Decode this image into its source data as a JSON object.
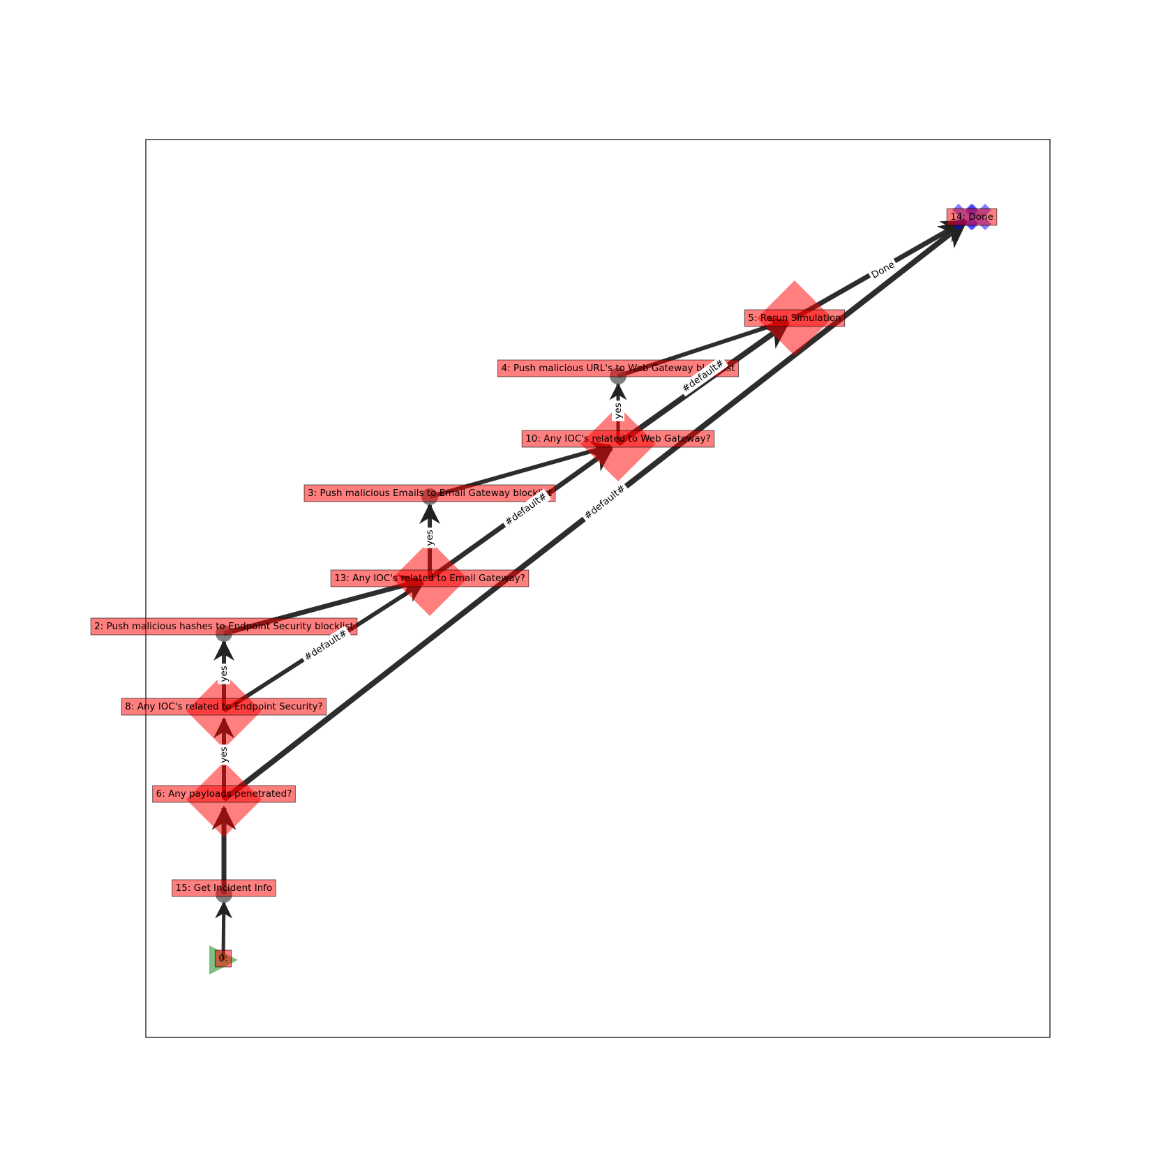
{
  "colors": {
    "edge": "#222222",
    "box_fill": "#ff0000",
    "box_border": "#000000",
    "diamond": "#ff0000",
    "circle": "#555555",
    "start": "#008000",
    "end": "#0000ff"
  },
  "nodes": [
    {
      "id": "n0",
      "label": "0:",
      "shape": "triangle"
    },
    {
      "id": "n15",
      "label": "15: Get Incident Info",
      "shape": "circle"
    },
    {
      "id": "n6",
      "label": "6: Any payloads penetrated?",
      "shape": "diamond"
    },
    {
      "id": "n8",
      "label": "8: Any IOC's related to Endpoint Security?",
      "shape": "diamond"
    },
    {
      "id": "n2",
      "label": "2: Push malicious hashes to Endpoint Security blocklist",
      "shape": "circle"
    },
    {
      "id": "n13",
      "label": "13: Any IOC's related to Email Gateway?",
      "shape": "diamond"
    },
    {
      "id": "n3",
      "label": "3: Push malicious Emails to Email Gateway blocklist",
      "shape": "circle"
    },
    {
      "id": "n10",
      "label": "10: Any IOC's related to Web Gateway?",
      "shape": "diamond"
    },
    {
      "id": "n4",
      "label": "4: Push malicious URL's to Web Gateway blocklist",
      "shape": "circle"
    },
    {
      "id": "n5",
      "label": "5: Rerun Simulation",
      "shape": "diamond"
    },
    {
      "id": "n14",
      "label": "14: Done",
      "shape": "x"
    }
  ],
  "edges": [
    {
      "id": "e0_15",
      "from": "n0",
      "to": "n15",
      "label": ""
    },
    {
      "id": "e15_6",
      "from": "n15",
      "to": "n6",
      "label": ""
    },
    {
      "id": "e6_8",
      "from": "n6",
      "to": "n8",
      "label": "yes"
    },
    {
      "id": "e6_14",
      "from": "n6",
      "to": "n14",
      "label": "#default#"
    },
    {
      "id": "e8_2",
      "from": "n8",
      "to": "n2",
      "label": "yes"
    },
    {
      "id": "e8_13",
      "from": "n8",
      "to": "n13",
      "label": "#default#"
    },
    {
      "id": "e2_13",
      "from": "n2",
      "to": "n13",
      "label": ""
    },
    {
      "id": "e13_3",
      "from": "n13",
      "to": "n3",
      "label": "yes"
    },
    {
      "id": "e13_10",
      "from": "n13",
      "to": "n10",
      "label": "#default#"
    },
    {
      "id": "e3_10",
      "from": "n3",
      "to": "n10",
      "label": ""
    },
    {
      "id": "e10_4",
      "from": "n10",
      "to": "n4",
      "label": "yes"
    },
    {
      "id": "e10_5",
      "from": "n10",
      "to": "n5",
      "label": "#default#"
    },
    {
      "id": "e4_5",
      "from": "n4",
      "to": "n5",
      "label": ""
    },
    {
      "id": "e5_14",
      "from": "n5",
      "to": "n14",
      "label": "Done"
    }
  ]
}
